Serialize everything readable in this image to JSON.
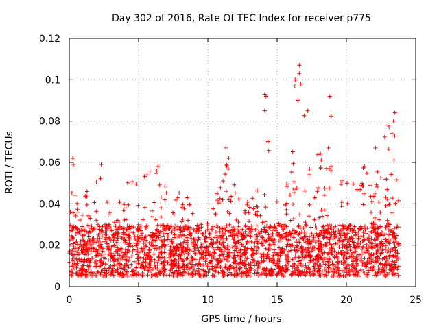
{
  "chart_data": {
    "type": "scatter",
    "title": "Day 302 of 2016, Rate Of TEC Index for receiver p775",
    "xlabel": "GPS time / hours",
    "ylabel": "ROTI / TECUs",
    "xlim": [
      0,
      25
    ],
    "ylim": [
      0,
      0.12
    ],
    "x_ticks": [
      0,
      5,
      10,
      15,
      20,
      25
    ],
    "x_tick_labels": [
      "0",
      "5",
      "10",
      "15",
      "20",
      "25"
    ],
    "y_ticks": [
      0,
      0.02,
      0.04,
      0.06,
      0.08,
      0.1,
      0.12
    ],
    "y_tick_labels": [
      "0",
      "0.02",
      "0.04",
      "0.06",
      "0.08",
      "0.1",
      "0.12"
    ],
    "grid": true,
    "marker": "plus",
    "series": [
      {
        "name": "ROTI",
        "color": "#ff0000",
        "x_range": [
          0,
          23.8
        ],
        "baseline_range": [
          0.005,
          0.03
        ],
        "envelope": [
          {
            "x": 0.0,
            "max": 0.03
          },
          {
            "x": 0.3,
            "max": 0.063
          },
          {
            "x": 0.5,
            "max": 0.04
          },
          {
            "x": 1.0,
            "max": 0.042
          },
          {
            "x": 2.3,
            "max": 0.06
          },
          {
            "x": 3.0,
            "max": 0.035
          },
          {
            "x": 4.2,
            "max": 0.053
          },
          {
            "x": 5.0,
            "max": 0.055
          },
          {
            "x": 6.4,
            "max": 0.058
          },
          {
            "x": 7.5,
            "max": 0.048
          },
          {
            "x": 8.5,
            "max": 0.047
          },
          {
            "x": 9.5,
            "max": 0.03
          },
          {
            "x": 10.5,
            "max": 0.042
          },
          {
            "x": 11.3,
            "max": 0.067
          },
          {
            "x": 12.5,
            "max": 0.04
          },
          {
            "x": 13.5,
            "max": 0.045
          },
          {
            "x": 14.1,
            "max": 0.093
          },
          {
            "x": 14.6,
            "max": 0.06
          },
          {
            "x": 15.5,
            "max": 0.035
          },
          {
            "x": 16.3,
            "max": 0.1
          },
          {
            "x": 16.6,
            "max": 0.107
          },
          {
            "x": 17.0,
            "max": 0.085
          },
          {
            "x": 17.5,
            "max": 0.05
          },
          {
            "x": 18.8,
            "max": 0.092
          },
          {
            "x": 19.2,
            "max": 0.055
          },
          {
            "x": 20.5,
            "max": 0.055
          },
          {
            "x": 21.5,
            "max": 0.06
          },
          {
            "x": 22.0,
            "max": 0.045
          },
          {
            "x": 22.5,
            "max": 0.067
          },
          {
            "x": 23.0,
            "max": 0.078
          },
          {
            "x": 23.5,
            "max": 0.084
          },
          {
            "x": 23.8,
            "max": 0.04
          }
        ],
        "outliers": [
          {
            "x": 0.25,
            "y": 0.062
          },
          {
            "x": 0.3,
            "y": 0.059
          },
          {
            "x": 2.3,
            "y": 0.059
          },
          {
            "x": 6.4,
            "y": 0.058
          },
          {
            "x": 11.3,
            "y": 0.067
          },
          {
            "x": 14.1,
            "y": 0.093
          },
          {
            "x": 14.2,
            "y": 0.092
          },
          {
            "x": 14.1,
            "y": 0.085
          },
          {
            "x": 16.3,
            "y": 0.1
          },
          {
            "x": 16.6,
            "y": 0.107
          },
          {
            "x": 16.6,
            "y": 0.103
          },
          {
            "x": 16.7,
            "y": 0.098
          },
          {
            "x": 16.5,
            "y": 0.09
          },
          {
            "x": 17.2,
            "y": 0.085
          },
          {
            "x": 18.8,
            "y": 0.092
          },
          {
            "x": 18.7,
            "y": 0.067
          },
          {
            "x": 21.3,
            "y": 0.058
          },
          {
            "x": 22.1,
            "y": 0.067
          },
          {
            "x": 23.0,
            "y": 0.078
          },
          {
            "x": 23.3,
            "y": 0.074
          },
          {
            "x": 23.5,
            "y": 0.084
          },
          {
            "x": 23.4,
            "y": 0.08
          }
        ]
      }
    ]
  }
}
